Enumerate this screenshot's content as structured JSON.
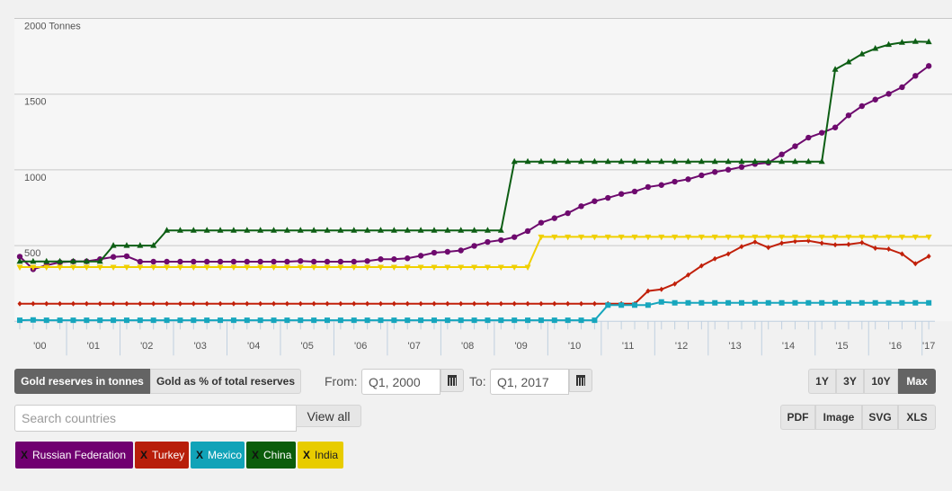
{
  "chart_data": {
    "type": "line",
    "y_unit_label": "2000 Tonnes",
    "ylim": [
      0,
      2000
    ],
    "y_ticks": [
      500,
      1000,
      1500,
      2000
    ],
    "y_tick_labels": [
      "500",
      "1000",
      "1500",
      "2000 Tonnes"
    ],
    "x_start": "Q1 2000",
    "x_end": "Q1 2017",
    "x_interval": "quarter",
    "x_tick_labels": [
      "'00",
      "'01",
      "'02",
      "'03",
      "'04",
      "'05",
      "'06",
      "'07",
      "'08",
      "'09",
      "'10",
      "'11",
      "'12",
      "'13",
      "'14",
      "'15",
      "'16",
      "'17"
    ],
    "grid": true,
    "series": [
      {
        "name": "Russian Federation",
        "color": "#6e0a6e",
        "marker": "circle",
        "values": [
          427,
          344,
          370,
          390,
          395,
          396,
          410,
          425,
          430,
          394,
          394,
          394,
          394,
          394,
          394,
          394,
          394,
          394,
          394,
          394,
          394,
          398,
          394,
          394,
          394,
          394,
          398,
          410,
          410,
          416,
          433,
          453,
          459,
          468,
          498,
          524,
          536,
          556,
          596,
          651,
          681,
          714,
          760,
          793,
          815,
          841,
          857,
          887,
          900,
          922,
          938,
          964,
          986,
          1001,
          1019,
          1039,
          1047,
          1102,
          1156,
          1213,
          1245,
          1280,
          1360,
          1421,
          1464,
          1502,
          1546,
          1621,
          1686
        ]
      },
      {
        "name": "Turkey",
        "color": "#c1200a",
        "marker": "diamond",
        "values": [
          116,
          116,
          116,
          116,
          116,
          116,
          116,
          116,
          116,
          116,
          116,
          116,
          116,
          116,
          116,
          116,
          116,
          116,
          116,
          116,
          116,
          116,
          116,
          116,
          116,
          116,
          116,
          116,
          116,
          116,
          116,
          116,
          116,
          116,
          116,
          116,
          116,
          116,
          116,
          116,
          116,
          116,
          116,
          116,
          116,
          116,
          116,
          200,
          211,
          247,
          306,
          366,
          413,
          445,
          493,
          524,
          487,
          516,
          528,
          532,
          516,
          505,
          508,
          520,
          483,
          477,
          445,
          380,
          429
        ]
      },
      {
        "name": "Mexico",
        "color": "#17a6bd",
        "marker": "square",
        "values": [
          7,
          9,
          7,
          7,
          7,
          7,
          7,
          7,
          7,
          7,
          7,
          7,
          7,
          7,
          7,
          7,
          7,
          7,
          7,
          7,
          7,
          7,
          7,
          7,
          7,
          7,
          7,
          7,
          7,
          7,
          7,
          7,
          7,
          7,
          7,
          7,
          7,
          7,
          7,
          7,
          7,
          7,
          7,
          7,
          107,
          107,
          107,
          107,
          128,
          122,
          122,
          122,
          122,
          122,
          122,
          122,
          122,
          122,
          122,
          122,
          122,
          122,
          122,
          122,
          122,
          122,
          122,
          122,
          122
        ]
      },
      {
        "name": "China",
        "color": "#0d5e14",
        "marker": "triangle",
        "values": [
          395,
          395,
          395,
          395,
          395,
          395,
          395,
          500,
          500,
          500,
          500,
          600,
          600,
          600,
          600,
          600,
          600,
          600,
          600,
          600,
          600,
          600,
          600,
          600,
          600,
          600,
          600,
          600,
          600,
          600,
          600,
          600,
          600,
          600,
          600,
          600,
          600,
          1054,
          1054,
          1054,
          1054,
          1054,
          1054,
          1054,
          1054,
          1054,
          1054,
          1054,
          1054,
          1054,
          1054,
          1054,
          1054,
          1054,
          1054,
          1054,
          1054,
          1054,
          1054,
          1054,
          1054,
          1663,
          1712,
          1765,
          1801,
          1827,
          1841,
          1847,
          1845
        ]
      },
      {
        "name": "India",
        "color": "#f0d000",
        "marker": "triangle-down",
        "values": [
          358,
          358,
          358,
          358,
          358,
          358,
          358,
          358,
          358,
          358,
          358,
          358,
          358,
          358,
          358,
          358,
          358,
          358,
          358,
          358,
          358,
          358,
          358,
          358,
          358,
          358,
          358,
          358,
          358,
          358,
          358,
          358,
          358,
          358,
          358,
          358,
          358,
          358,
          358,
          558,
          558,
          558,
          558,
          558,
          558,
          558,
          558,
          558,
          558,
          558,
          558,
          558,
          558,
          558,
          558,
          558,
          558,
          558,
          558,
          558,
          558,
          558,
          558,
          558,
          558,
          558,
          558,
          558,
          558
        ]
      }
    ]
  },
  "controls": {
    "mode_tonnes": "Gold reserves in tonnes",
    "mode_percent": "Gold as % of total reserves",
    "from_label": "From:",
    "from_value": "Q1, 2000",
    "to_label": "To:",
    "to_value": "Q1, 2017",
    "ranges": [
      "1Y",
      "3Y",
      "10Y",
      "Max"
    ],
    "search_placeholder": "Search countries",
    "view_all": "View all",
    "exports": [
      "PDF",
      "Image",
      "SVG",
      "XLS"
    ]
  },
  "tags": [
    {
      "label": "Russian Federation",
      "remove": "X",
      "color": "#700070"
    },
    {
      "label": "Turkey",
      "remove": "X",
      "color": "#b81e0a"
    },
    {
      "label": "Mexico",
      "remove": "X",
      "color": "#11a3b8"
    },
    {
      "label": "China",
      "remove": "X",
      "color": "#0b5c0b"
    },
    {
      "label": "India",
      "remove": "X",
      "color": "#e8cc00"
    }
  ]
}
